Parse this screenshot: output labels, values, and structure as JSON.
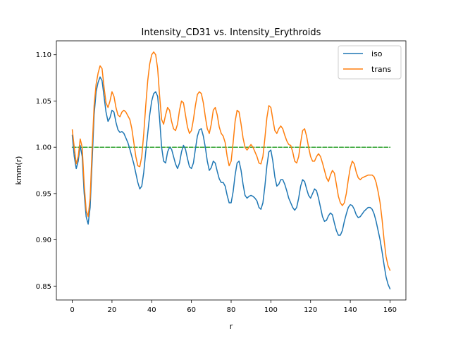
{
  "chart_data": {
    "type": "line",
    "title": "Intensity_CD31 vs. Intensity_Erythroids",
    "xlabel": "r",
    "ylabel": "kmm(r)",
    "xlim": [
      -8,
      168
    ],
    "ylim": [
      0.835,
      1.115
    ],
    "xticks": [
      0,
      20,
      40,
      60,
      80,
      100,
      120,
      140,
      160
    ],
    "yticks": [
      0.85,
      0.9,
      0.95,
      1.0,
      1.05,
      1.1
    ],
    "ytick_labels": [
      "0.85",
      "0.90",
      "0.95",
      "1.00",
      "1.05",
      "1.10"
    ],
    "legend_position": "top-right",
    "grid": false,
    "series": [
      {
        "name": "iso",
        "color": "#1f77b4",
        "style": "solid",
        "x": [
          0,
          1,
          2,
          3,
          4,
          5,
          6,
          7,
          8,
          9,
          10,
          11,
          12,
          13,
          14,
          15,
          16,
          17,
          18,
          19,
          20,
          21,
          22,
          23,
          24,
          25,
          26,
          27,
          28,
          29,
          30,
          31,
          32,
          33,
          34,
          35,
          36,
          37,
          38,
          39,
          40,
          41,
          42,
          43,
          44,
          45,
          46,
          47,
          48,
          49,
          50,
          51,
          52,
          53,
          54,
          55,
          56,
          57,
          58,
          59,
          60,
          61,
          62,
          63,
          64,
          65,
          66,
          67,
          68,
          69,
          70,
          71,
          72,
          73,
          74,
          75,
          76,
          77,
          78,
          79,
          80,
          81,
          82,
          83,
          84,
          85,
          86,
          87,
          88,
          89,
          90,
          91,
          92,
          93,
          94,
          95,
          96,
          97,
          98,
          99,
          100,
          101,
          102,
          103,
          104,
          105,
          106,
          107,
          108,
          109,
          110,
          111,
          112,
          113,
          114,
          115,
          116,
          117,
          118,
          119,
          120,
          121,
          122,
          123,
          124,
          125,
          126,
          127,
          128,
          129,
          130,
          131,
          132,
          133,
          134,
          135,
          136,
          137,
          138,
          139,
          140,
          141,
          142,
          143,
          144,
          145,
          146,
          147,
          148,
          149,
          150,
          151,
          152,
          153,
          154,
          155,
          156,
          157,
          158,
          159,
          160
        ],
        "values": [
          1.013,
          0.99,
          0.977,
          0.985,
          1.002,
          0.99,
          0.95,
          0.925,
          0.917,
          0.935,
          0.985,
          1.035,
          1.06,
          1.07,
          1.076,
          1.072,
          1.055,
          1.038,
          1.028,
          1.032,
          1.04,
          1.038,
          1.027,
          1.019,
          1.016,
          1.017,
          1.015,
          1.01,
          1.005,
          0.998,
          0.99,
          0.982,
          0.972,
          0.962,
          0.955,
          0.958,
          0.973,
          0.995,
          1.015,
          1.035,
          1.05,
          1.058,
          1.06,
          1.055,
          1.03,
          1.0,
          0.985,
          0.983,
          0.995,
          1.0,
          0.998,
          0.99,
          0.982,
          0.977,
          0.983,
          0.995,
          1.002,
          0.998,
          0.988,
          0.979,
          0.977,
          0.983,
          0.998,
          1.012,
          1.019,
          1.02,
          1.012,
          1.0,
          0.985,
          0.975,
          0.978,
          0.985,
          0.983,
          0.974,
          0.966,
          0.962,
          0.962,
          0.958,
          0.948,
          0.94,
          0.94,
          0.952,
          0.97,
          0.983,
          0.985,
          0.975,
          0.96,
          0.948,
          0.945,
          0.947,
          0.948,
          0.947,
          0.945,
          0.942,
          0.935,
          0.933,
          0.94,
          0.958,
          0.98,
          0.995,
          0.997,
          0.985,
          0.968,
          0.958,
          0.96,
          0.965,
          0.965,
          0.96,
          0.953,
          0.945,
          0.94,
          0.935,
          0.932,
          0.935,
          0.945,
          0.958,
          0.965,
          0.963,
          0.955,
          0.948,
          0.945,
          0.95,
          0.955,
          0.953,
          0.945,
          0.935,
          0.925,
          0.92,
          0.921,
          0.926,
          0.929,
          0.927,
          0.918,
          0.91,
          0.905,
          0.905,
          0.91,
          0.92,
          0.928,
          0.935,
          0.938,
          0.937,
          0.933,
          0.927,
          0.924,
          0.925,
          0.928,
          0.931,
          0.933,
          0.935,
          0.935,
          0.933,
          0.928,
          0.92,
          0.91,
          0.9,
          0.887,
          0.873,
          0.86,
          0.852,
          0.847
        ]
      },
      {
        "name": "trans",
        "color": "#ff7f0e",
        "style": "solid",
        "x": [
          0,
          1,
          2,
          3,
          4,
          5,
          6,
          7,
          8,
          9,
          10,
          11,
          12,
          13,
          14,
          15,
          16,
          17,
          18,
          19,
          20,
          21,
          22,
          23,
          24,
          25,
          26,
          27,
          28,
          29,
          30,
          31,
          32,
          33,
          34,
          35,
          36,
          37,
          38,
          39,
          40,
          41,
          42,
          43,
          44,
          45,
          46,
          47,
          48,
          49,
          50,
          51,
          52,
          53,
          54,
          55,
          56,
          57,
          58,
          59,
          60,
          61,
          62,
          63,
          64,
          65,
          66,
          67,
          68,
          69,
          70,
          71,
          72,
          73,
          74,
          75,
          76,
          77,
          78,
          79,
          80,
          81,
          82,
          83,
          84,
          85,
          86,
          87,
          88,
          89,
          90,
          91,
          92,
          93,
          94,
          95,
          96,
          97,
          98,
          99,
          100,
          101,
          102,
          103,
          104,
          105,
          106,
          107,
          108,
          109,
          110,
          111,
          112,
          113,
          114,
          115,
          116,
          117,
          118,
          119,
          120,
          121,
          122,
          123,
          124,
          125,
          126,
          127,
          128,
          129,
          130,
          131,
          132,
          133,
          134,
          135,
          136,
          137,
          138,
          139,
          140,
          141,
          142,
          143,
          144,
          145,
          146,
          147,
          148,
          149,
          150,
          151,
          152,
          153,
          154,
          155,
          156,
          157,
          158,
          159,
          160
        ],
        "values": [
          1.019,
          1.0,
          0.982,
          0.99,
          1.009,
          1.0,
          0.96,
          0.932,
          0.925,
          0.945,
          0.998,
          1.045,
          1.068,
          1.08,
          1.088,
          1.085,
          1.065,
          1.048,
          1.043,
          1.05,
          1.06,
          1.055,
          1.043,
          1.035,
          1.033,
          1.038,
          1.04,
          1.038,
          1.034,
          1.03,
          1.02,
          1.005,
          0.99,
          0.98,
          0.979,
          0.99,
          1.015,
          1.045,
          1.072,
          1.09,
          1.1,
          1.103,
          1.1,
          1.085,
          1.055,
          1.03,
          1.025,
          1.035,
          1.043,
          1.04,
          1.028,
          1.02,
          1.018,
          1.025,
          1.04,
          1.05,
          1.048,
          1.035,
          1.022,
          1.015,
          1.018,
          1.03,
          1.045,
          1.057,
          1.06,
          1.058,
          1.048,
          1.033,
          1.02,
          1.015,
          1.025,
          1.04,
          1.043,
          1.035,
          1.022,
          1.015,
          1.012,
          1.005,
          0.99,
          0.98,
          0.985,
          1.005,
          1.028,
          1.04,
          1.038,
          1.025,
          1.01,
          1.0,
          0.997,
          1.0,
          1.003,
          1.0,
          0.995,
          0.99,
          0.983,
          0.982,
          0.99,
          1.01,
          1.032,
          1.045,
          1.043,
          1.03,
          1.018,
          1.015,
          1.02,
          1.023,
          1.02,
          1.013,
          1.007,
          1.003,
          1.002,
          0.995,
          0.985,
          0.983,
          0.99,
          1.005,
          1.018,
          1.02,
          1.012,
          1.0,
          0.99,
          0.985,
          0.985,
          0.99,
          0.993,
          0.99,
          0.983,
          0.975,
          0.967,
          0.963,
          0.97,
          0.975,
          0.972,
          0.96,
          0.947,
          0.94,
          0.937,
          0.94,
          0.95,
          0.965,
          0.978,
          0.985,
          0.982,
          0.973,
          0.967,
          0.965,
          0.967,
          0.968,
          0.969,
          0.97,
          0.97,
          0.97,
          0.968,
          0.962,
          0.952,
          0.94,
          0.922,
          0.9,
          0.882,
          0.872,
          0.867
        ]
      },
      {
        "name": "",
        "color": "#2ca02c",
        "style": "dashed",
        "x": [
          0,
          160
        ],
        "values": [
          1.0,
          1.0
        ]
      }
    ]
  }
}
